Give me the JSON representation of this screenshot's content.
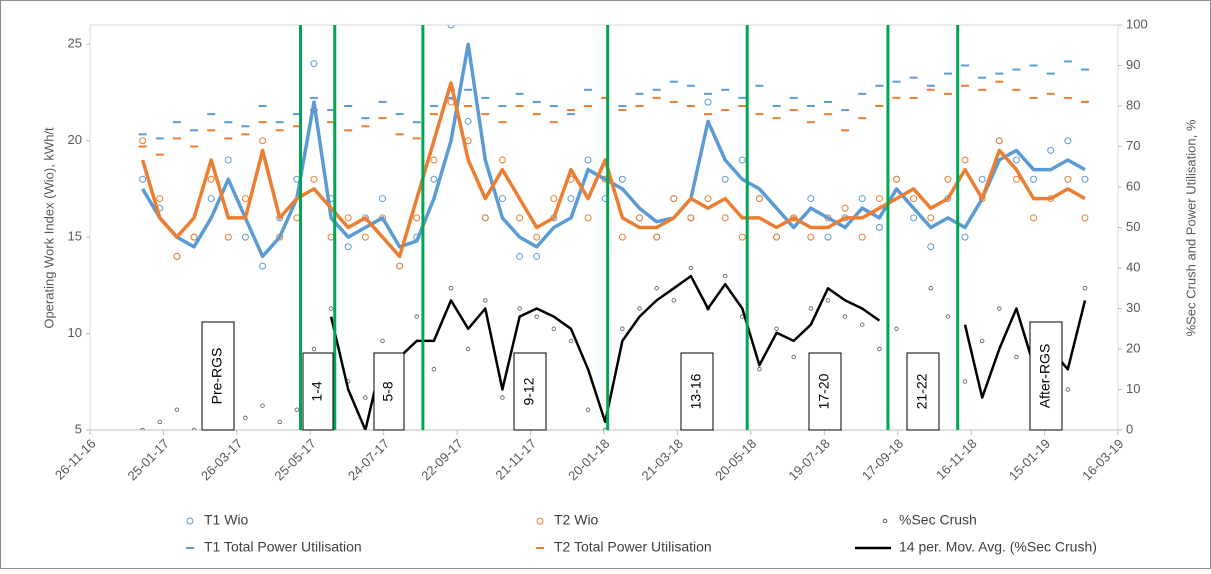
{
  "chart_data": {
    "type": "scatter",
    "x": [
      "2017-01-08",
      "2017-01-22",
      "2017-02-05",
      "2017-02-19",
      "2017-03-05",
      "2017-03-19",
      "2017-04-02",
      "2017-04-16",
      "2017-04-30",
      "2017-05-14",
      "2017-05-28",
      "2017-06-11",
      "2017-06-25",
      "2017-07-09",
      "2017-07-23",
      "2017-08-06",
      "2017-08-20",
      "2017-09-03",
      "2017-09-17",
      "2017-10-01",
      "2017-10-15",
      "2017-10-29",
      "2017-11-12",
      "2017-11-26",
      "2017-12-10",
      "2017-12-24",
      "2018-01-07",
      "2018-01-21",
      "2018-02-04",
      "2018-02-18",
      "2018-03-04",
      "2018-03-18",
      "2018-04-01",
      "2018-04-15",
      "2018-04-29",
      "2018-05-13",
      "2018-05-27",
      "2018-06-10",
      "2018-06-24",
      "2018-07-08",
      "2018-07-22",
      "2018-08-05",
      "2018-08-19",
      "2018-09-02",
      "2018-09-16",
      "2018-09-30",
      "2018-10-14",
      "2018-10-28",
      "2018-11-11",
      "2018-11-25",
      "2018-12-09",
      "2018-12-23",
      "2019-01-06",
      "2019-01-20",
      "2019-02-03",
      "2019-02-17"
    ],
    "xlim": [
      "2016-11-26",
      "2019-03-16"
    ],
    "xticks": [
      {
        "value": "2016-11-26",
        "label": "26-11-16"
      },
      {
        "value": "2017-01-25",
        "label": "25-01-17"
      },
      {
        "value": "2017-03-26",
        "label": "26-03-17"
      },
      {
        "value": "2017-05-25",
        "label": "25-05-17"
      },
      {
        "value": "2017-07-24",
        "label": "24-07-17"
      },
      {
        "value": "2017-09-22",
        "label": "22-09-17"
      },
      {
        "value": "2017-11-21",
        "label": "21-11-17"
      },
      {
        "value": "2018-01-20",
        "label": "20-01-18"
      },
      {
        "value": "2018-03-21",
        "label": "21-03-18"
      },
      {
        "value": "2018-05-20",
        "label": "20-05-18"
      },
      {
        "value": "2018-07-19",
        "label": "19-07-18"
      },
      {
        "value": "2018-09-17",
        "label": "17-09-18"
      },
      {
        "value": "2018-11-16",
        "label": "16-11-18"
      },
      {
        "value": "2019-01-15",
        "label": "15-01-19"
      },
      {
        "value": "2019-03-16",
        "label": "16-03-19"
      }
    ],
    "ylim": [
      5,
      26
    ],
    "yticks": [
      5,
      10,
      15,
      20,
      25
    ],
    "y2lim": [
      0,
      100
    ],
    "y2ticks": [
      0,
      10,
      20,
      30,
      40,
      50,
      60,
      70,
      80,
      90,
      100
    ],
    "y_label": "Operating Work Index (Wio), kWh/t",
    "y2_label": "%Sec Crush and Power Utilisation, %",
    "phase_lines": [
      "2017-05-17",
      "2017-06-14",
      "2017-08-25",
      "2018-01-23",
      "2018-05-17",
      "2018-09-09",
      "2018-11-05"
    ],
    "phase_line_color": "#00a650",
    "annotations": [
      "Pre-RGS",
      "1-4",
      "5-8",
      "9-12",
      "13-16",
      "17-20",
      "21-22",
      "After-RGS"
    ],
    "series": [
      {
        "name": "T1 Wio",
        "color": "#5b9bd5",
        "marker": "circle",
        "values": [
          18,
          16.5,
          14,
          15,
          17,
          19,
          15,
          13.5,
          16,
          18,
          24,
          17,
          14.5,
          16,
          17,
          13.5,
          15,
          18,
          26,
          21,
          16,
          17,
          14,
          14,
          16,
          17,
          19,
          17,
          18,
          16,
          15,
          17,
          16,
          22,
          18,
          19,
          17,
          15,
          16,
          17,
          15,
          16,
          17,
          15.5,
          18,
          16,
          14.5,
          17,
          15,
          18,
          20,
          19,
          18,
          19.5,
          20,
          18
        ]
      },
      {
        "name": "T2 Wio",
        "color": "#ed7d31",
        "marker": "circle",
        "values": [
          20,
          17,
          14,
          15,
          18,
          15,
          17,
          20,
          15,
          16,
          18,
          15,
          16,
          15,
          16,
          13.5,
          16,
          19,
          22,
          20,
          16,
          19,
          16,
          15,
          17,
          18,
          16,
          18,
          15,
          16,
          15,
          17,
          16,
          17,
          16,
          15,
          17,
          15,
          16,
          15,
          16,
          16.5,
          15,
          17,
          18,
          17,
          16,
          18,
          19,
          17,
          20,
          18,
          16,
          17,
          18,
          16
        ]
      },
      {
        "name": "%Sec Crush",
        "color": "#595959",
        "marker": "dot",
        "axis": "y2",
        "values": [
          0,
          2,
          5,
          0,
          8,
          1,
          3,
          6,
          2,
          5,
          20,
          30,
          12,
          8,
          22,
          18,
          28,
          15,
          35,
          20,
          32,
          8,
          30,
          28,
          25,
          22,
          5,
          0,
          25,
          30,
          35,
          32,
          40,
          30,
          38,
          28,
          15,
          25,
          18,
          30,
          32,
          28,
          26,
          20,
          25,
          10,
          35,
          28,
          12,
          22,
          30,
          18,
          25,
          20,
          10,
          35
        ]
      },
      {
        "name": "T1 Total Power Utilisation",
        "color": "#5b9bd5",
        "marker": "dash",
        "axis": "y2",
        "values": [
          73,
          72,
          76,
          74,
          78,
          76,
          75,
          80,
          76,
          78,
          82,
          79,
          80,
          77,
          81,
          78,
          76,
          80,
          82,
          84,
          82,
          80,
          83,
          81,
          80,
          78,
          84,
          82,
          80,
          83,
          84,
          86,
          85,
          83,
          84,
          82,
          85,
          80,
          82,
          80,
          81,
          79,
          83,
          85,
          86,
          87,
          85,
          88,
          90,
          87,
          88,
          89,
          90,
          88,
          91,
          89
        ]
      },
      {
        "name": "T2 Total Power Utilisation",
        "color": "#ed7d31",
        "marker": "dash",
        "axis": "y2",
        "values": [
          70,
          68,
          72,
          70,
          74,
          72,
          73,
          76,
          74,
          75,
          79,
          76,
          74,
          75,
          77,
          73,
          72,
          78,
          84,
          80,
          78,
          76,
          80,
          78,
          76,
          79,
          80,
          82,
          79,
          80,
          82,
          81,
          80,
          78,
          79,
          80,
          78,
          77,
          79,
          76,
          78,
          74,
          77,
          80,
          82,
          82,
          84,
          83,
          85,
          84,
          86,
          84,
          82,
          83,
          82,
          81
        ]
      },
      {
        "name": "14 per. Mov. Avg. (%Sec Crush)",
        "color": "#000000",
        "marker": "line",
        "axis": "y2",
        "values": [
          null,
          null,
          null,
          null,
          null,
          null,
          null,
          null,
          null,
          null,
          null,
          28,
          10,
          0,
          18,
          18,
          22,
          22,
          32,
          25,
          30,
          10,
          28,
          30,
          28,
          25,
          15,
          2,
          22,
          28,
          32,
          35,
          38,
          30,
          36,
          30,
          16,
          24,
          22,
          26,
          35,
          32,
          30,
          27,
          null,
          null,
          null,
          null,
          26,
          8,
          20,
          30,
          16,
          20,
          15,
          32
        ]
      },
      {
        "color": "#5b9bd5",
        "marker": "line",
        "values": [
          17.5,
          16,
          15,
          14.5,
          16,
          18,
          16,
          14,
          15,
          17,
          22,
          16,
          15,
          15.5,
          16,
          14.5,
          14.8,
          17,
          20,
          25,
          19,
          16,
          15,
          14.5,
          15.5,
          16,
          18.5,
          18,
          17.5,
          16.5,
          15.8,
          16,
          17,
          21,
          19,
          18,
          17.5,
          16.5,
          15.5,
          16.5,
          16,
          15.5,
          16.5,
          16,
          17.5,
          16.5,
          15.5,
          16,
          15.5,
          17,
          19,
          19.5,
          18.5,
          18.5,
          19,
          18.5
        ]
      },
      {
        "color": "#ed7d31",
        "marker": "line",
        "values": [
          19,
          16,
          15,
          16,
          19,
          16,
          16,
          19.5,
          16,
          17,
          17.5,
          16.5,
          15.5,
          16,
          15,
          14,
          17,
          20,
          23,
          19,
          17,
          18.5,
          17,
          15.5,
          16,
          18.5,
          17,
          19,
          16,
          15.5,
          15.5,
          16,
          17,
          16.5,
          17,
          16,
          16,
          15.5,
          16,
          15.5,
          15.5,
          16,
          16,
          16.5,
          17,
          17.5,
          16.5,
          17,
          18.5,
          17,
          19.5,
          18.5,
          17,
          17,
          17.5,
          17
        ]
      }
    ]
  }
}
